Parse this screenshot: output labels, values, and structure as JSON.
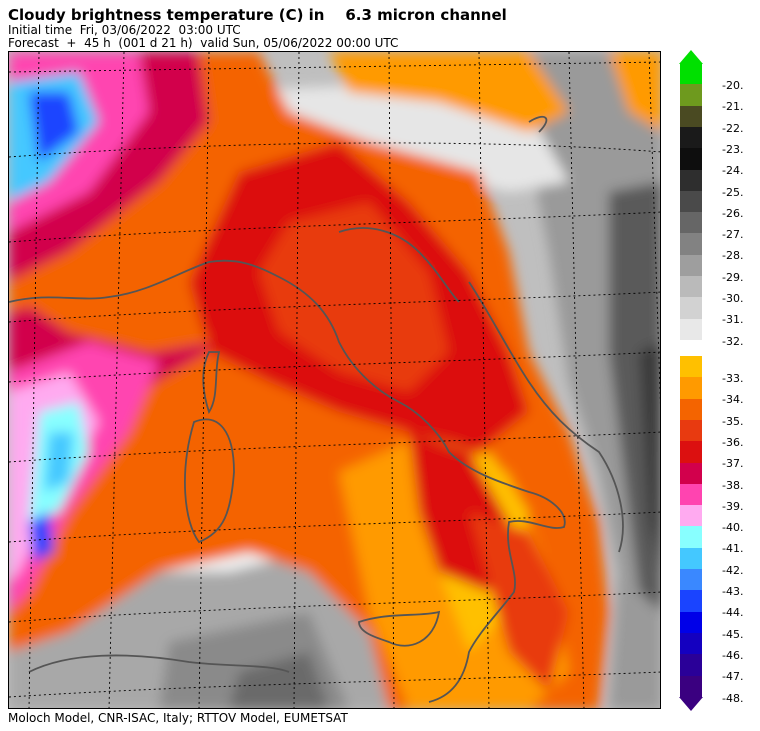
{
  "header": {
    "title": "Cloudy brightness temperature (C) in    6.3 micron channel",
    "initial_time": "Initial time  Fri, 03/06/2022  03:00 UTC",
    "forecast": "Forecast  +  45 h  (001 d 21 h)  valid Sun, 05/06/2022 00:00 UTC"
  },
  "footer": "Moloch Model, CNR-ISAC, Italy; RTTOV Model, EUMETSAT",
  "legend": {
    "grey_scale": [
      {
        "label": "-20.",
        "color": "#00e000"
      },
      {
        "label": "-21.",
        "color": "#6e9a1e"
      },
      {
        "label": "-22.",
        "color": "#4a4a22"
      },
      {
        "label": "-23.",
        "color": "#1a1a1a"
      },
      {
        "label": "-24.",
        "color": "#0e0e0e"
      },
      {
        "label": "-25.",
        "color": "#2e2e2e"
      },
      {
        "label": "-26.",
        "color": "#4a4a4a"
      },
      {
        "label": "-27.",
        "color": "#666666"
      },
      {
        "label": "-28.",
        "color": "#828282"
      },
      {
        "label": "-29.",
        "color": "#9e9e9e"
      },
      {
        "label": "-30.",
        "color": "#bababa"
      },
      {
        "label": "-31.",
        "color": "#d2d2d2"
      },
      {
        "label": "-32.",
        "color": "#e8e8e8"
      }
    ],
    "color_scale": [
      {
        "label": "-33.",
        "color": "#ffc000"
      },
      {
        "label": "-34.",
        "color": "#ff9a00"
      },
      {
        "label": "-35.",
        "color": "#f46400"
      },
      {
        "label": "-36.",
        "color": "#e83a10"
      },
      {
        "label": "-37.",
        "color": "#dc1010"
      },
      {
        "label": "-38.",
        "color": "#d2004c"
      },
      {
        "label": "-39.",
        "color": "#ff44b0"
      },
      {
        "label": "-40.",
        "color": "#ffaaf0"
      },
      {
        "label": "-41.",
        "color": "#88ffff"
      },
      {
        "label": "-42.",
        "color": "#44c8ff"
      },
      {
        "label": "-43.",
        "color": "#3a88ff"
      },
      {
        "label": "-44.",
        "color": "#1a44ff"
      },
      {
        "label": "-45.",
        "color": "#0000e8"
      },
      {
        "label": "-46.",
        "color": "#1400c0"
      },
      {
        "label": "-47.",
        "color": "#2a0098"
      },
      {
        "label": "-48.",
        "color": "#3a0080"
      }
    ]
  }
}
